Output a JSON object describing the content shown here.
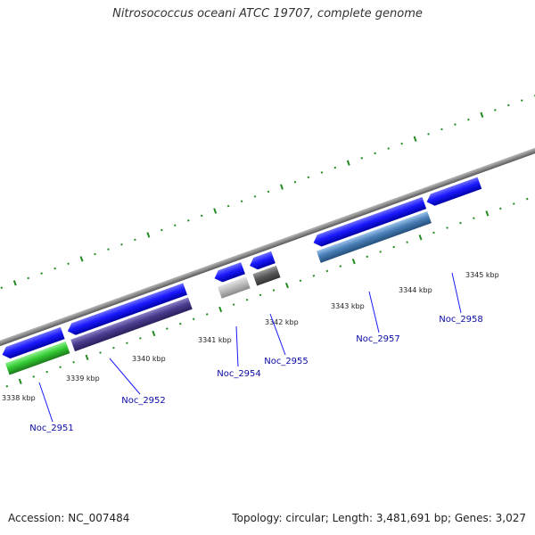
{
  "title": "Nitrosococcus oceani ATCC 19707, complete genome",
  "footer": {
    "accession": "Accession: NC_007484",
    "summary": "Topology: circular; Length: 3,481,691 bp; Genes: 3,027"
  },
  "backbone": {
    "color": "#8a8a8a"
  },
  "scale": {
    "tick_color": "#228b22",
    "label_color": "#222222",
    "labels": [
      "3338 kbp",
      "3339 kbp",
      "3340 kbp",
      "3341 kbp",
      "3342 kbp",
      "3343 kbp",
      "3344 kbp",
      "3345 kbp"
    ]
  },
  "genes": [
    {
      "id": "Noc_2951",
      "label": "Noc_2951",
      "color": "#1a1aff",
      "product_color": "#33cc33"
    },
    {
      "id": "Noc_2952",
      "label": "Noc_2952",
      "color": "#1a1aff",
      "product_color": "#4b3c8f"
    },
    {
      "id": "Noc_2954",
      "label": "Noc_2954",
      "color": "#1a1aff",
      "product_color": "#b8b8b8"
    },
    {
      "id": "Noc_2955",
      "label": "Noc_2955",
      "color": "#1a1aff",
      "product_color": "#5a5a5a"
    },
    {
      "id": "Noc_2957",
      "label": "Noc_2957",
      "color": "#1a1aff",
      "product_color": "#4a80b8"
    },
    {
      "id": "Noc_2958",
      "label": "Noc_2958",
      "color": "#1a1aff",
      "product_color": null
    }
  ],
  "gene_label_color": "#0a0aa6"
}
